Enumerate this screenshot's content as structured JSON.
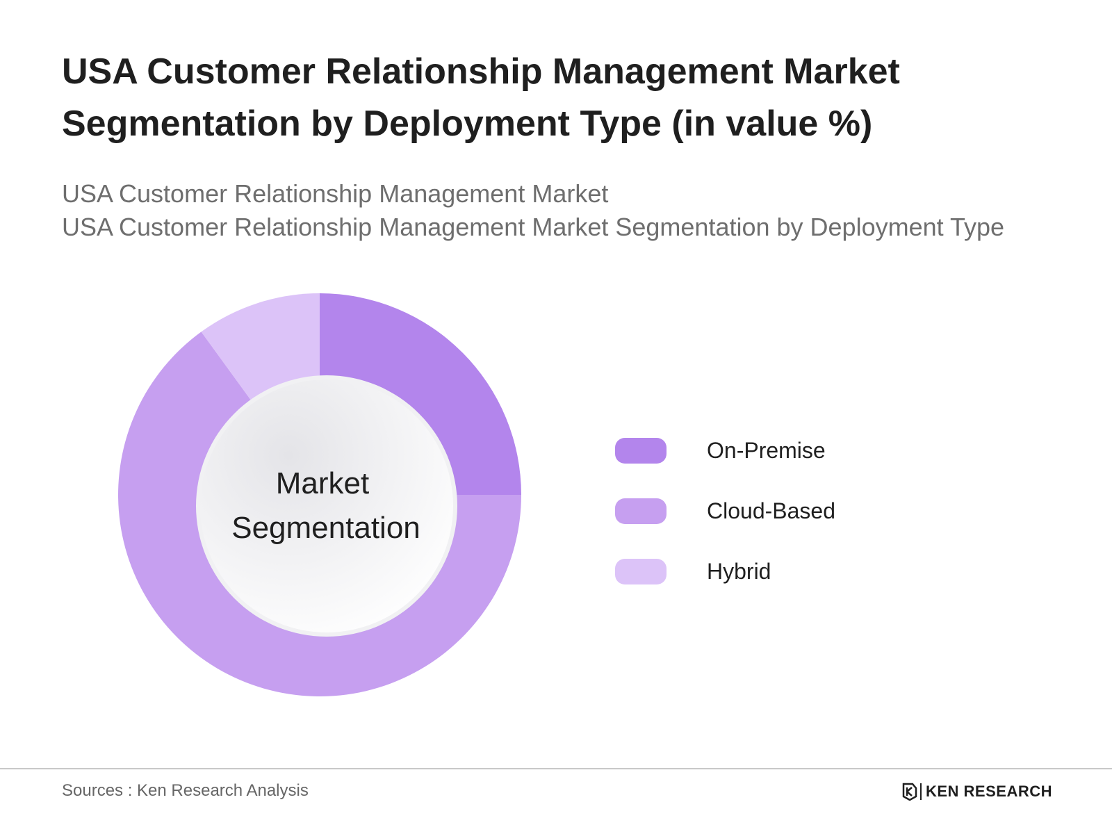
{
  "title_lines": [
    "USA Customer Relationship Management Market",
    "Segmentation by Deployment Type (in value %)"
  ],
  "subtitle_lines": [
    "USA Customer Relationship Management Market",
    "USA Customer Relationship Management Market Segmentation by Deployment Type"
  ],
  "center_label_lines": [
    "Market",
    "Segmentation"
  ],
  "footer": {
    "source": "Sources : Ken Research Analysis",
    "brand": "KEN RESEARCH"
  },
  "chart_data": {
    "type": "pie",
    "style": "donut",
    "start_angle": "top",
    "direction": "clockwise",
    "legend_position": "right",
    "categories": [
      "On-Premise",
      "Cloud-Based",
      "Hybrid"
    ],
    "values": [
      25,
      65,
      10
    ],
    "colors": [
      "#b385ec",
      "#c69ff0",
      "#dcc3f8"
    ]
  }
}
